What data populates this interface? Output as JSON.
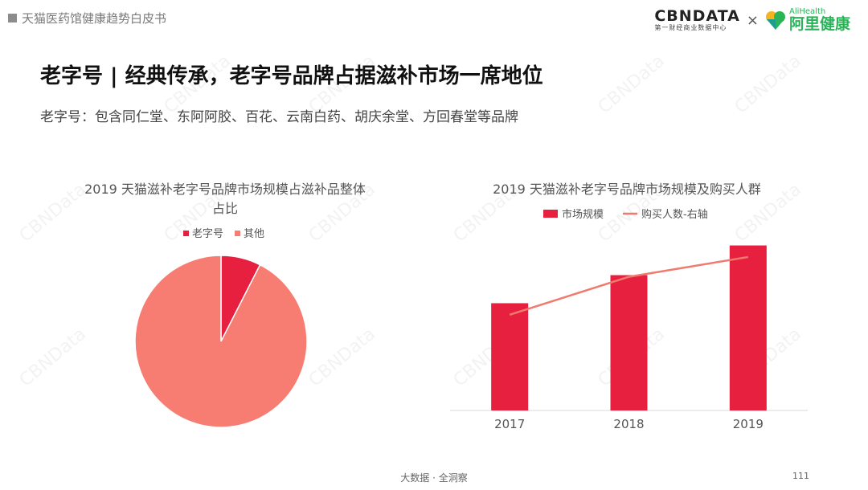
{
  "header": {
    "doc_title": "天猫医药馆健康趋势白皮书",
    "brand_cbn": "CBNDATA",
    "brand_cbn_sub": "第一财经商业数据中心",
    "times": "×",
    "brand_ali_en": "AliHealth",
    "brand_ali_cn": "阿里健康"
  },
  "main": {
    "title": "老字号 | 经典传承，老字号品牌占据滋补市场一席地位",
    "subtitle": "老字号：包含同仁堂、东阿阿胶、百花、云南白药、胡庆余堂、方回春堂等品牌"
  },
  "colors": {
    "bar": "#e8203f",
    "line": "#f07a6e",
    "pie_main": "#f77d73",
    "pie_small": "#e8203f"
  },
  "watermark": "CBNData",
  "chart_data": [
    {
      "type": "pie",
      "title_lines": [
        "2019 天猫滋补老字号品牌市场规模占滋补品整体",
        "占比"
      ],
      "legend": [
        {
          "name": "老字号",
          "color": "#e8203f"
        },
        {
          "name": "其他",
          "color": "#f77d73"
        }
      ],
      "slices": [
        {
          "name": "老字号",
          "value": 7.5
        },
        {
          "name": "其他",
          "value": 92.5
        }
      ],
      "legend_position": "top"
    },
    {
      "type": "bar",
      "title": "2019 天猫滋补老字号品牌市场规模及购买人群",
      "categories": [
        "2017",
        "2018",
        "2019"
      ],
      "series": [
        {
          "name": "市场规模",
          "kind": "bar",
          "values": [
            0.65,
            0.82,
            1.0
          ]
        },
        {
          "name": "购买人数-右轴",
          "kind": "line",
          "values": [
            0.58,
            0.81,
            0.93
          ]
        }
      ],
      "legend_position": "top",
      "y_axis_visible": false,
      "ylim": [
        0,
        1.1
      ]
    }
  ],
  "footer": {
    "text": "大数据 · 全洞察",
    "page": "111"
  }
}
